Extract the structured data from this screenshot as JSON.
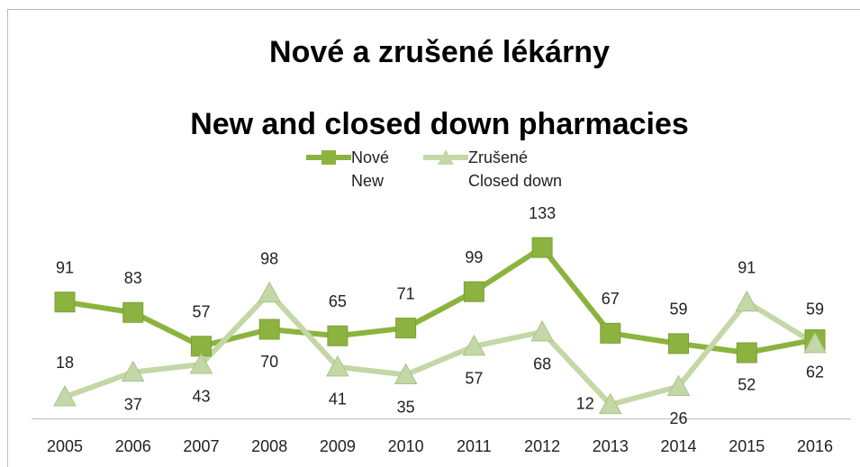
{
  "chart_data": {
    "type": "line",
    "title": "Nové a zrušené lékárny",
    "subtitle": "New and closed down pharmacies",
    "categories": [
      "2005",
      "2006",
      "2007",
      "2008",
      "2009",
      "2010",
      "2011",
      "2012",
      "2013",
      "2014",
      "2015",
      "2016"
    ],
    "series": [
      {
        "name": "Nové\nNew",
        "color": "#8cb33f",
        "marker": "square",
        "values": [
          91,
          83,
          57,
          70,
          65,
          71,
          99,
          133,
          67,
          59,
          52,
          62
        ]
      },
      {
        "name": "Zrušené\nClosed down",
        "color": "#c3d8a6",
        "marker": "triangle",
        "values": [
          18,
          37,
          43,
          98,
          41,
          35,
          57,
          68,
          12,
          26,
          91,
          59
        ]
      }
    ],
    "ylim": [
      0,
      140
    ]
  }
}
